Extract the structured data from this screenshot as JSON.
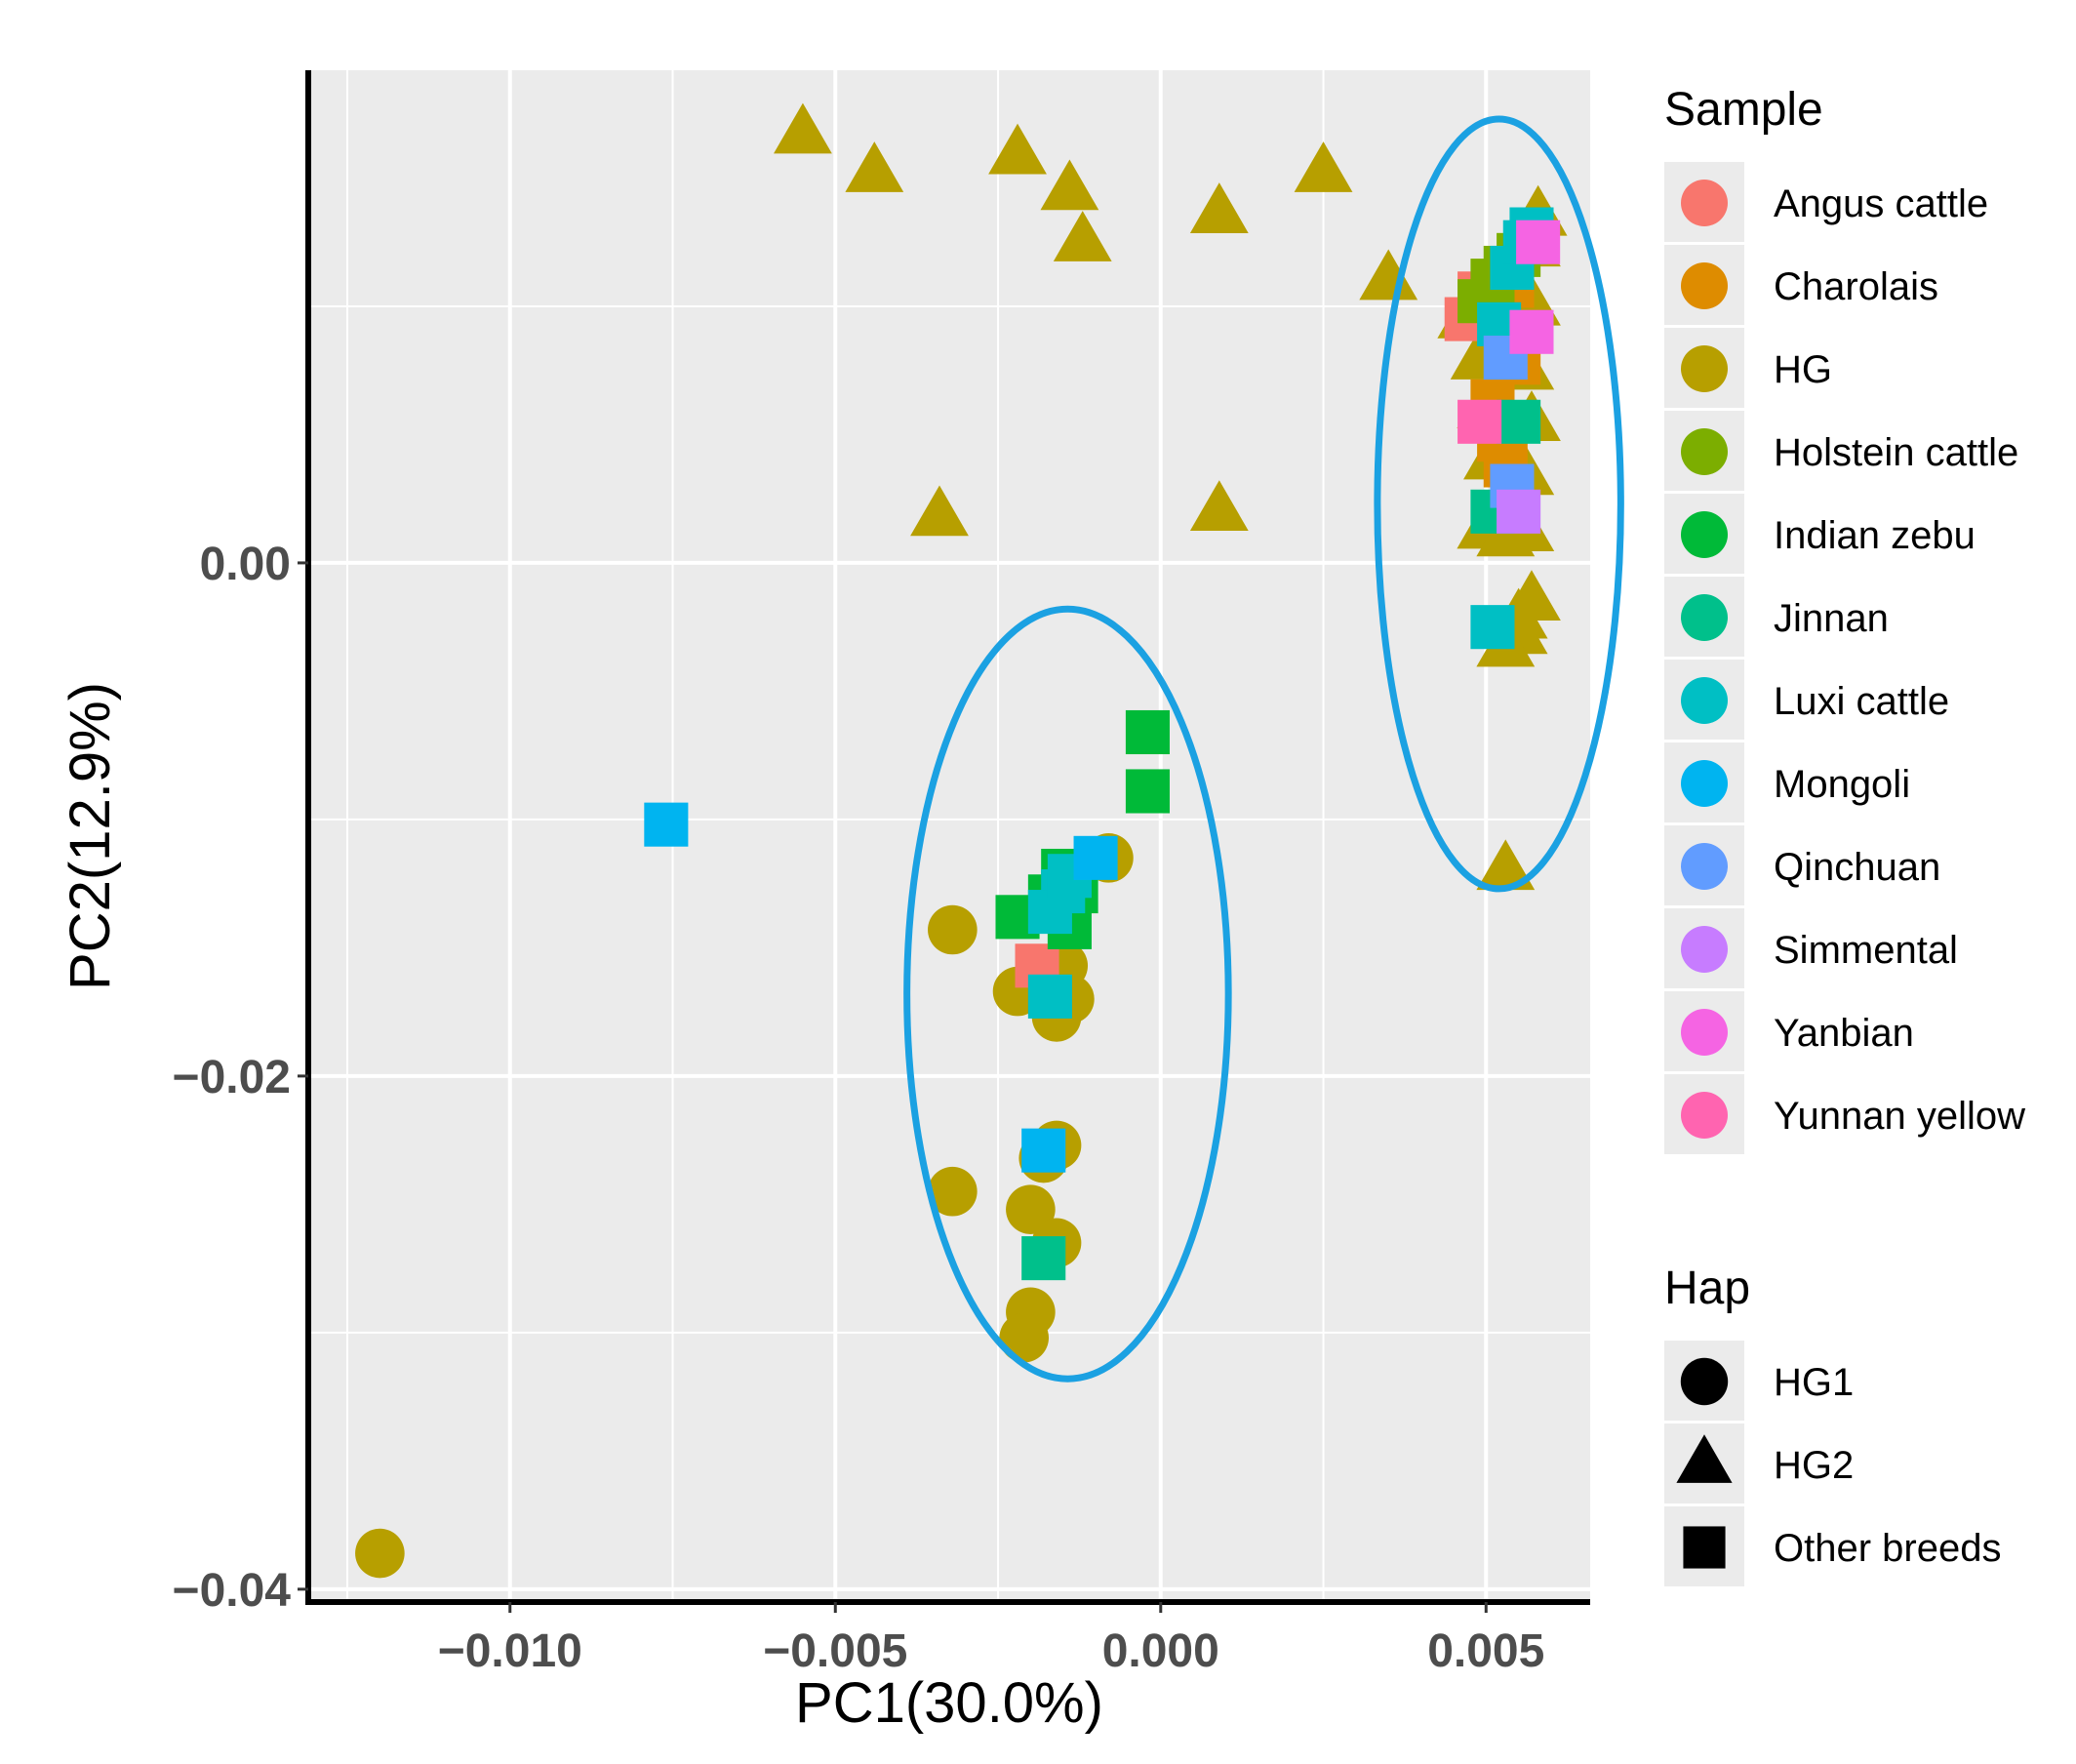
{
  "chart_data": {
    "type": "scatter",
    "xlabel": "PC1(30.0%)",
    "ylabel": "PC2(12.9%)",
    "xlim": [
      -0.0131,
      0.0066
    ],
    "ylim": [
      -0.0405,
      0.0192
    ],
    "x_ticks": [
      -0.01,
      -0.005,
      0.0,
      0.005
    ],
    "x_tick_labels": [
      "−0.010",
      "−0.005",
      "0.000",
      "0.005"
    ],
    "y_ticks": [
      -0.04,
      -0.02,
      0.0
    ],
    "y_tick_labels": [
      "−0.04",
      "−0.02",
      "0.00"
    ],
    "grid": true,
    "legend": {
      "sample_title": "Sample",
      "sample_entries": [
        {
          "label": "Angus cattle",
          "color": "#F8766D"
        },
        {
          "label": "Charolais",
          "color": "#DE8C00"
        },
        {
          "label": "HG",
          "color": "#B79F00"
        },
        {
          "label": "Holstein cattle",
          "color": "#7CAE00"
        },
        {
          "label": "Indian zebu",
          "color": "#00BA38"
        },
        {
          "label": "Jinnan",
          "color": "#00C08B"
        },
        {
          "label": "Luxi cattle",
          "color": "#00BFC4"
        },
        {
          "label": "Mongoli",
          "color": "#00B4F0"
        },
        {
          "label": "Qinchuan",
          "color": "#619CFF"
        },
        {
          "label": "Simmental",
          "color": "#C77CFF"
        },
        {
          "label": "Yanbian",
          "color": "#F564E3"
        },
        {
          "label": "Yunnan yellow",
          "color": "#FF64B0"
        }
      ],
      "hap_title": "Hap",
      "hap_entries": [
        {
          "label": "HG1",
          "shape": "circle"
        },
        {
          "label": "HG2",
          "shape": "triangle"
        },
        {
          "label": "Other breeds",
          "shape": "square"
        }
      ],
      "placement": "right"
    },
    "annotations": [
      {
        "type": "ellipse",
        "color": "#1BA1E2",
        "cx": -0.00143,
        "cy": -0.0168,
        "rx": 0.00247,
        "ry": 0.015
      },
      {
        "type": "ellipse",
        "color": "#1BA1E2",
        "cx": 0.0052,
        "cy": 0.0023,
        "rx": 0.00187,
        "ry": 0.015
      }
    ],
    "series": [
      {
        "name": "HG / HG1",
        "sample": "HG",
        "hap": "HG1",
        "color": "#B79F00",
        "points": [
          [
            -0.012,
            -0.0386
          ],
          [
            -0.0032,
            -0.0143
          ],
          [
            -0.0022,
            -0.0167
          ],
          [
            -0.0016,
            -0.0177
          ],
          [
            -0.0014,
            -0.017
          ],
          [
            -0.0015,
            -0.0157
          ],
          [
            -0.0008,
            -0.0115
          ],
          [
            -0.0032,
            -0.0245
          ],
          [
            -0.002,
            -0.0252
          ],
          [
            -0.0016,
            -0.0265
          ],
          [
            -0.0016,
            -0.0227
          ],
          [
            -0.0018,
            -0.0232
          ],
          [
            -0.002,
            -0.0292
          ],
          [
            -0.0021,
            -0.0302
          ]
        ]
      },
      {
        "name": "HG / HG2",
        "sample": "HG",
        "hap": "HG2",
        "color": "#B79F00",
        "points": [
          [
            -0.0055,
            0.0167
          ],
          [
            -0.0044,
            0.0152
          ],
          [
            -0.0022,
            0.0159
          ],
          [
            -0.0014,
            0.0145
          ],
          [
            -0.0012,
            0.0125
          ],
          [
            0.0009,
            0.0136
          ],
          [
            0.0025,
            0.0152
          ],
          [
            0.0035,
            0.011
          ],
          [
            -0.0034,
            0.0018
          ],
          [
            0.0009,
            0.002
          ],
          [
            0.0047,
            0.0095
          ],
          [
            0.0049,
            0.0079
          ],
          [
            0.005,
            0.006
          ],
          [
            0.0051,
            0.004
          ],
          [
            0.005,
            0.0013
          ],
          [
            0.0053,
            0.001
          ],
          [
            0.0056,
            0.0012
          ],
          [
            0.0057,
            0.0123
          ],
          [
            0.0058,
            0.0135
          ],
          [
            0.0057,
            0.01
          ],
          [
            0.0056,
            0.0075
          ],
          [
            0.0057,
            0.0055
          ],
          [
            0.0056,
            0.0034
          ],
          [
            0.0055,
            -0.0028
          ],
          [
            0.0057,
            -0.0015
          ],
          [
            0.0053,
            -0.0033
          ],
          [
            0.0055,
            -0.0022
          ],
          [
            0.0053,
            -0.012
          ]
        ]
      },
      {
        "name": "Angus cattle",
        "sample": "Angus cattle",
        "hap": "Other breeds",
        "color": "#F8766D",
        "points": [
          [
            -0.0019,
            -0.0157
          ],
          [
            0.0047,
            0.0095
          ],
          [
            0.0049,
            0.0105
          ]
        ]
      },
      {
        "name": "Charolais",
        "sample": "Charolais",
        "hap": "Other breeds",
        "color": "#DE8C00",
        "points": [
          [
            0.0051,
            0.0063
          ],
          [
            0.0052,
            0.0048
          ],
          [
            0.0053,
            0.0038
          ],
          [
            0.0055,
            0.0078
          ],
          [
            0.0054,
            0.0108
          ]
        ]
      },
      {
        "name": "Holstein cattle",
        "sample": "Holstein cattle",
        "hap": "Other breeds",
        "color": "#7CAE00",
        "points": [
          [
            0.0049,
            0.0102
          ],
          [
            0.0051,
            0.011
          ],
          [
            0.0053,
            0.0115
          ],
          [
            0.0055,
            0.012
          ]
        ]
      },
      {
        "name": "Indian zebu",
        "sample": "Indian zebu",
        "hap": "Other breeds",
        "color": "#00BA38",
        "points": [
          [
            -0.0002,
            -0.0066
          ],
          [
            -0.0002,
            -0.0089
          ],
          [
            -0.0022,
            -0.0138
          ],
          [
            -0.0015,
            -0.012
          ],
          [
            -0.0013,
            -0.0128
          ],
          [
            -0.0014,
            -0.0142
          ],
          [
            -0.0017,
            -0.013
          ]
        ]
      },
      {
        "name": "Jinnan",
        "sample": "Jinnan",
        "hap": "Other breeds",
        "color": "#00C08B",
        "points": [
          [
            -0.0018,
            -0.0271
          ],
          [
            0.0055,
            0.0055
          ],
          [
            0.0051,
            0.002
          ]
        ]
      },
      {
        "name": "Luxi cattle",
        "sample": "Luxi cattle",
        "hap": "Other breeds",
        "color": "#00BFC4",
        "points": [
          [
            -0.0017,
            -0.0169
          ],
          [
            -0.0015,
            -0.0128
          ],
          [
            -0.0017,
            -0.0136
          ],
          [
            -0.0014,
            -0.0122
          ],
          [
            0.0051,
            -0.0025
          ],
          [
            0.0052,
            0.0093
          ],
          [
            0.0054,
            0.0115
          ],
          [
            0.0056,
            0.0125
          ],
          [
            0.0057,
            0.013
          ]
        ]
      },
      {
        "name": "Mongoli",
        "sample": "Mongoli",
        "hap": "Other breeds",
        "color": "#00B4F0",
        "points": [
          [
            -0.0076,
            -0.0102
          ],
          [
            -0.0018,
            -0.0229
          ],
          [
            -0.001,
            -0.0115
          ]
        ]
      },
      {
        "name": "Qinchuan",
        "sample": "Qinchuan",
        "hap": "Other breeds",
        "color": "#619CFF",
        "points": [
          [
            0.0054,
            0.003
          ],
          [
            0.0053,
            0.008
          ]
        ]
      },
      {
        "name": "Simmental",
        "sample": "Simmental",
        "hap": "Other breeds",
        "color": "#C77CFF",
        "points": [
          [
            0.0055,
            0.002
          ]
        ]
      },
      {
        "name": "Yanbian",
        "sample": "Yanbian",
        "hap": "Other breeds",
        "color": "#F564E3",
        "points": [
          [
            0.0057,
            0.009
          ],
          [
            0.0058,
            0.0125
          ]
        ]
      },
      {
        "name": "Yunnan yellow",
        "sample": "Yunnan yellow",
        "hap": "Other breeds",
        "color": "#FF64B0",
        "points": [
          [
            0.0049,
            0.0055
          ]
        ]
      }
    ]
  }
}
